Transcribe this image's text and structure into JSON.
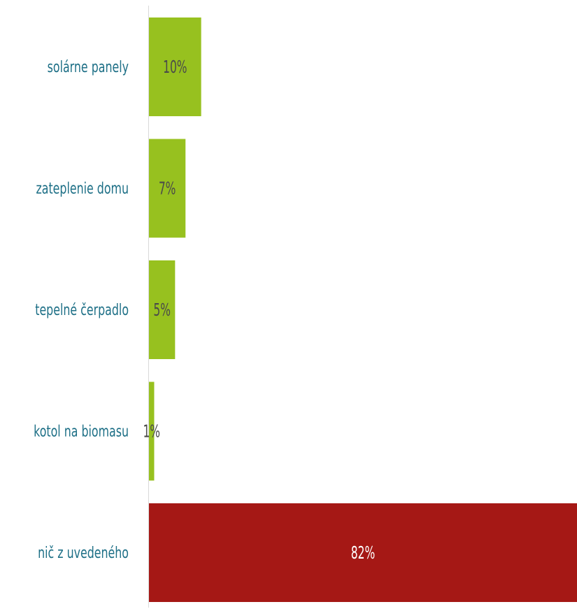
{
  "chart_data": {
    "type": "bar",
    "orientation": "horizontal",
    "categories": [
      "solárne panely",
      "zateplenie domu",
      "tepelné čerpadlo",
      "kotol na biomasu",
      "nič z uvedeného"
    ],
    "values": [
      10,
      7,
      5,
      1,
      82
    ],
    "data_labels": [
      "10%",
      "7%",
      "5%",
      "1%",
      "82%"
    ],
    "unit": "%",
    "title": "",
    "xlabel": "",
    "ylabel": "",
    "xlim": [
      0,
      82
    ],
    "grid": false,
    "legend": "none",
    "colors": {
      "default": "#97c11f",
      "highlight": "#a51815",
      "category_label": "#1d6f86",
      "data_label_on_default": "#4a4a4a",
      "data_label_on_highlight": "#ffffff",
      "axis_line": "#d9d9d9"
    },
    "highlight_index": 4
  }
}
